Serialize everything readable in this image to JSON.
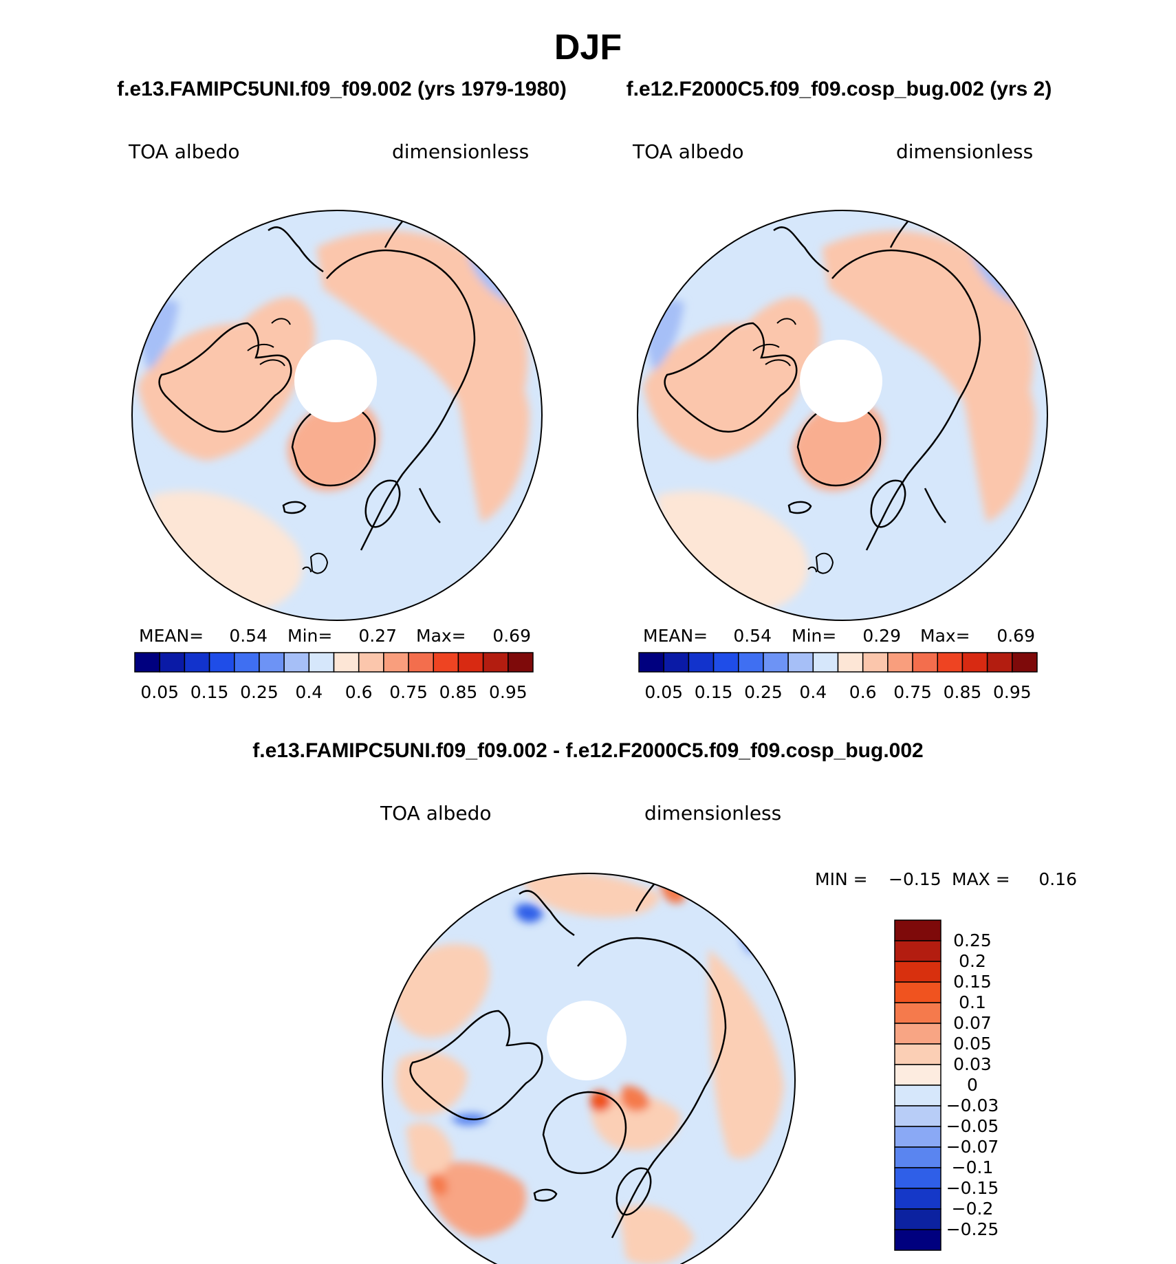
{
  "title": "DJF",
  "chart_data": [
    {
      "type": "heatmap",
      "projection": "north-polar-stereographic",
      "title": "f.e13.FAMIPC5UNI.f09_f09.002 (yrs 1979-1980)",
      "left_label": "TOA albedo",
      "right_label": "dimensionless",
      "stats": {
        "mean_label": "MEAN=",
        "mean": "0.54",
        "min_label": "Min=",
        "min": "0.27",
        "max_label": "Max=",
        "max": "0.69"
      },
      "colorbar_ticks": [
        "0.05",
        "0.15",
        "0.25",
        "0.4",
        "0.6",
        "0.75",
        "0.85",
        "0.95"
      ]
    },
    {
      "type": "heatmap",
      "projection": "north-polar-stereographic",
      "title": "f.e12.F2000C5.f09_f09.cosp_bug.002 (yrs 2)",
      "left_label": "TOA albedo",
      "right_label": "dimensionless",
      "stats": {
        "mean_label": "MEAN=",
        "mean": "0.54",
        "min_label": "Min=",
        "min": "0.29",
        "max_label": "Max=",
        "max": "0.69"
      },
      "colorbar_ticks": [
        "0.05",
        "0.15",
        "0.25",
        "0.4",
        "0.6",
        "0.75",
        "0.85",
        "0.95"
      ]
    },
    {
      "type": "heatmap",
      "projection": "north-polar-stereographic",
      "title": "f.e13.FAMIPC5UNI.f09_f09.002 - f.e12.F2000C5.f09_f09.cosp_bug.002",
      "left_label": "TOA albedo",
      "right_label": "dimensionless",
      "minmax": {
        "min_label": "MIN =",
        "min": "−0.15",
        "max_label": "MAX =",
        "max": "0.16"
      },
      "colorbar_ticks": [
        "0.25",
        "0.2",
        "0.15",
        "0.1",
        "0.07",
        "0.05",
        "0.03",
        "0",
        "−0.03",
        "−0.05",
        "−0.07",
        "−0.1",
        "−0.15",
        "−0.2",
        "−0.25"
      ]
    }
  ],
  "colors": {
    "abs_scale": [
      "#00007f",
      "#0a1aa6",
      "#1233cc",
      "#1f4de8",
      "#3f6ff2",
      "#6d93f5",
      "#a6bff7",
      "#d6e7fb",
      "#fde6d6",
      "#fbc6ac",
      "#f99e7d",
      "#f36e4d",
      "#ee4422",
      "#d82a12",
      "#b31d10",
      "#7e0a0a"
    ],
    "diff_scale": [
      "#7e0a0a",
      "#b31d10",
      "#d8300e",
      "#f0531f",
      "#f57a4c",
      "#f8a584",
      "#fbcfb5",
      "#fdece0",
      "#d6e7fb",
      "#b8cdf7",
      "#8aa9f5",
      "#5a85f0",
      "#2f5fe8",
      "#1538c8",
      "#0c22a0",
      "#00007f"
    ],
    "ocean_abs": "#d6e7fb",
    "land_abs": "#fbc6ac",
    "diff_bg": "#d6e7fb"
  }
}
